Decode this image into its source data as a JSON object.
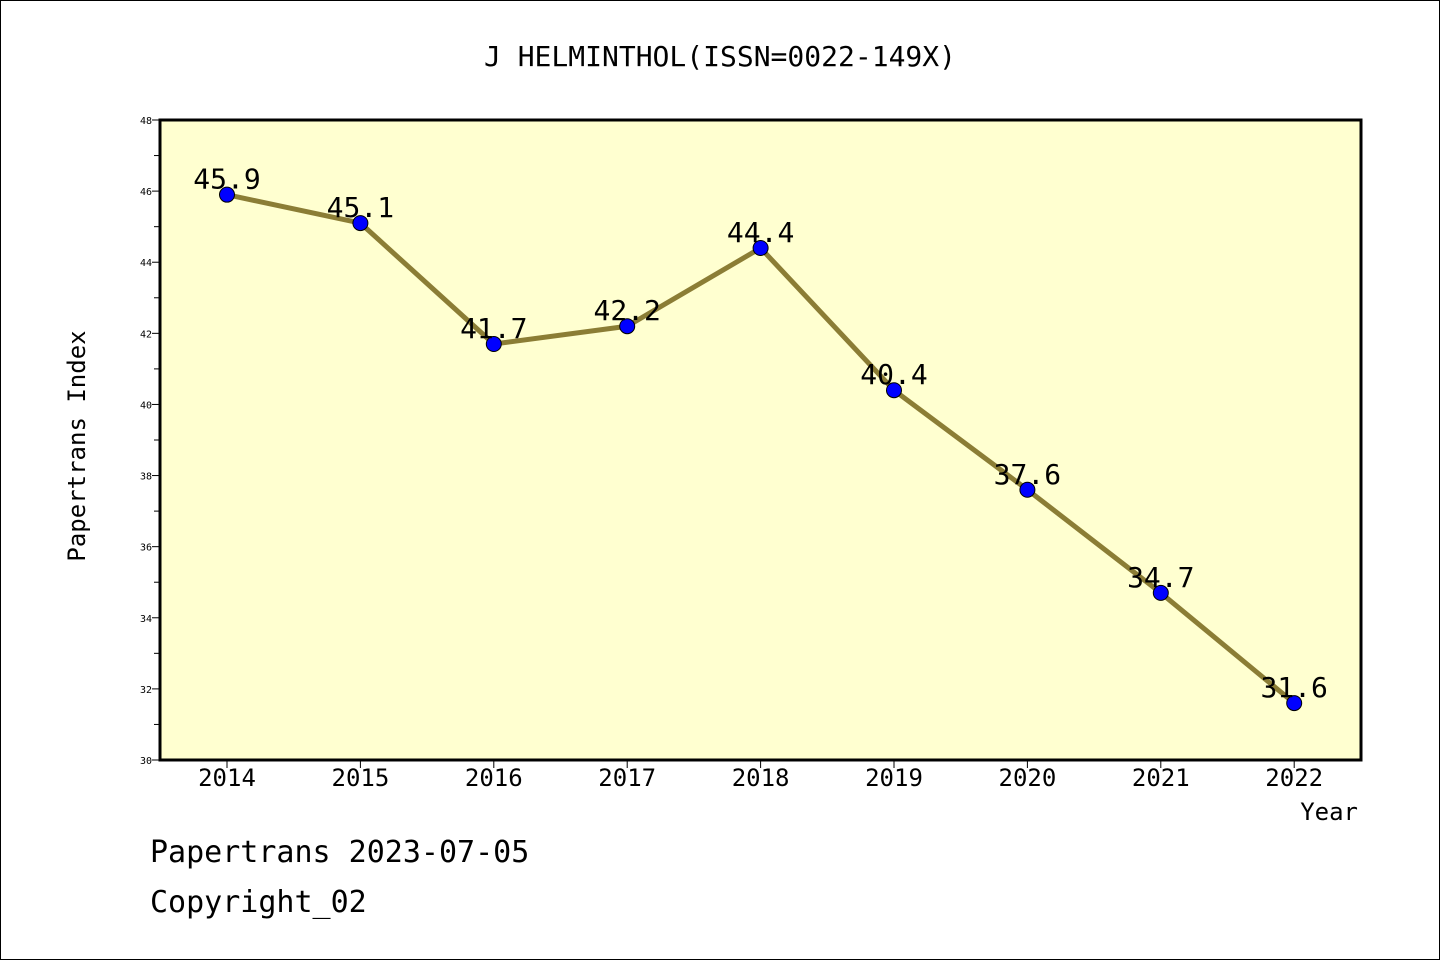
{
  "chart_data": {
    "type": "line",
    "title": "J HELMINTHOL(ISSN=0022-149X)",
    "xlabel": "Year",
    "ylabel": "Papertrans Index",
    "categories": [
      "2014",
      "2015",
      "2016",
      "2017",
      "2018",
      "2019",
      "2020",
      "2021",
      "2022"
    ],
    "series": [
      {
        "values": [
          45.9,
          45.1,
          41.7,
          42.2,
          44.4,
          40.4,
          37.6,
          34.7,
          31.6
        ]
      }
    ],
    "data_labels": [
      "45.9",
      "45.1",
      "41.7",
      "42.2",
      "44.4",
      "40.4",
      "37.6",
      "34.7",
      "31.6"
    ],
    "ylim": [
      30,
      48
    ],
    "yticks": [
      30,
      32,
      34,
      36,
      38,
      40,
      42,
      44,
      46,
      48
    ],
    "grid": false,
    "legend": "none",
    "colors": {
      "plot_background": "#ffffd0",
      "line": "#8b7d35",
      "marker": "#0000ff"
    }
  },
  "footer": {
    "date_text": "Papertrans 2023-07-05",
    "copyright_text": "Copyright_02"
  }
}
